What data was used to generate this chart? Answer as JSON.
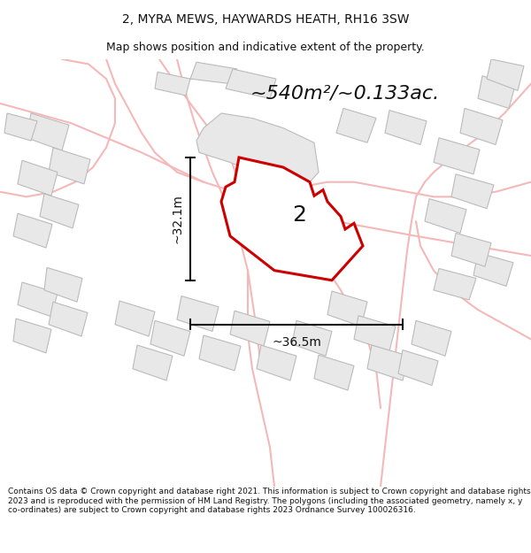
{
  "title_line1": "2, MYRA MEWS, HAYWARDS HEATH, RH16 3SW",
  "title_line2": "Map shows position and indicative extent of the property.",
  "area_label": "~540m²/~0.133ac.",
  "property_number": "2",
  "width_label": "~36.5m",
  "height_label": "~32.1m",
  "footer_text": "Contains OS data © Crown copyright and database right 2021. This information is subject to Crown copyright and database rights 2023 and is reproduced with the permission of HM Land Registry. The polygons (including the associated geometry, namely x, y co-ordinates) are subject to Crown copyright and database rights 2023 Ordnance Survey 100026316.",
  "bg_color": "#ffffff",
  "map_bg": "#ffffff",
  "property_fill": "#ffffff",
  "property_edge": "#cc0000",
  "neighbor_fill": "#e8e8e8",
  "neighbor_edge": "#bbbbbb",
  "road_color": "#f5b8b8",
  "dim_color": "#111111",
  "text_color": "#111111",
  "footer_color": "#111111",
  "title_fontsize": 10,
  "subtitle_fontsize": 9,
  "area_fontsize": 16,
  "dim_fontsize": 10,
  "prop_num_fontsize": 18
}
